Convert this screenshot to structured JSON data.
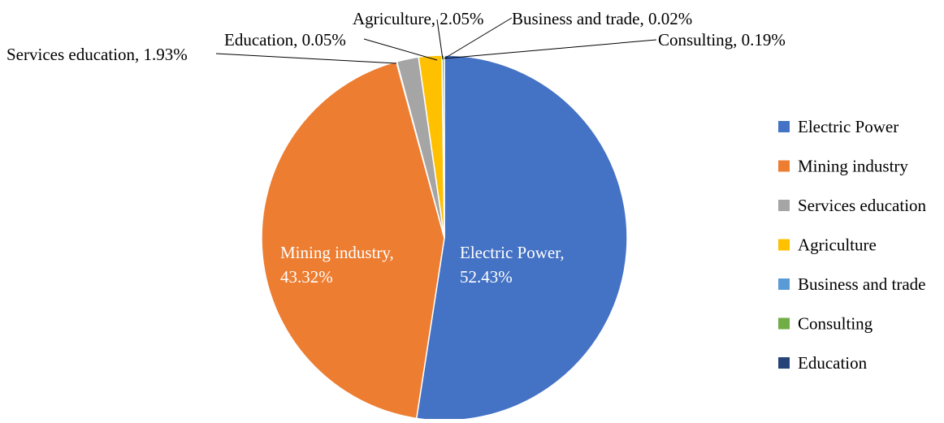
{
  "chart_data": {
    "type": "pie",
    "title": "",
    "legend_position": "right",
    "start_angle_deg": 0,
    "direction": "clockwise",
    "slices": [
      {
        "name": "Electric Power",
        "value": 52.43,
        "color": "#4472C4",
        "label_line1": "Electric Power,",
        "label_line2": "52.43%",
        "label_style": "inside"
      },
      {
        "name": "Mining industry",
        "value": 43.32,
        "color": "#ED7D31",
        "label_line1": "Mining industry,",
        "label_line2": "43.32%",
        "label_style": "inside"
      },
      {
        "name": "Services education",
        "value": 1.93,
        "color": "#A5A5A5",
        "label_line1": "Services education, 1.93%",
        "label_style": "outside"
      },
      {
        "name": "Agriculture",
        "value": 2.05,
        "color": "#FFC000",
        "label_line1": "Agriculture, 2.05%",
        "label_style": "outside"
      },
      {
        "name": "Business and trade",
        "value": 0.02,
        "color": "#5B9BD5",
        "label_line1": "Business and trade, 0.02%",
        "label_style": "outside"
      },
      {
        "name": "Consulting",
        "value": 0.19,
        "color": "#70AD47",
        "label_line1": "Consulting, 0.19%",
        "label_style": "outside"
      },
      {
        "name": "Education",
        "value": 0.05,
        "color": "#264478",
        "label_line1": "Education, 0.05%",
        "label_style": "outside"
      }
    ],
    "draw_order": [
      "Electric Power",
      "Mining industry",
      "Education",
      "Services education",
      "Agriculture",
      "Business and trade",
      "Consulting"
    ],
    "legend": [
      "Electric Power",
      "Mining industry",
      "Services education",
      "Agriculture",
      "Business and trade",
      "Consulting",
      "Education"
    ]
  }
}
